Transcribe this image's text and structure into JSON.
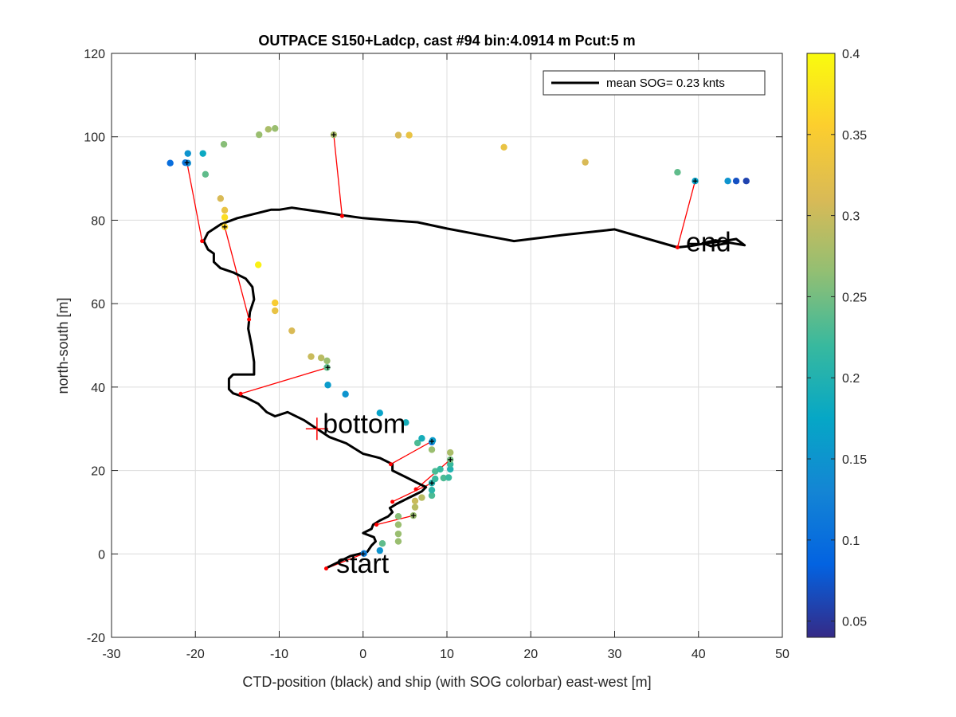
{
  "chart_data": {
    "type": "scatter",
    "title": "OUTPACE S150+Ladcp, cast #94 bin:4.0914 m  Pcut:5 m",
    "xlabel": "CTD-position (black) and ship (with SOG colorbar) east-west [m]",
    "ylabel": "north-south [m]",
    "xlim": [
      -30,
      50
    ],
    "ylim": [
      -20,
      120
    ],
    "xticks": [
      -30,
      -20,
      -10,
      0,
      10,
      20,
      30,
      40,
      50
    ],
    "yticks": [
      -20,
      0,
      20,
      40,
      60,
      80,
      100,
      120
    ],
    "grid": true,
    "legend": {
      "label": "mean SOG=  0.23 knts",
      "location": "top-right"
    },
    "colorbar": {
      "range": [
        0.04,
        0.4
      ],
      "ticks": [
        0.05,
        0.1,
        0.15,
        0.2,
        0.25,
        0.3,
        0.35,
        0.4
      ],
      "tick_labels": [
        "0.05",
        "0.1",
        "0.15",
        "0.2",
        "0.25",
        "0.3",
        "0.35",
        "0.4"
      ],
      "colormap": "parula"
    },
    "ctd_track": [
      [
        -4.5,
        -3.5
      ],
      [
        -3,
        -2
      ],
      [
        -1.5,
        -0.5
      ],
      [
        0.5,
        0.5
      ],
      [
        1,
        2
      ],
      [
        1.5,
        3
      ],
      [
        1.3,
        4
      ],
      [
        0,
        5
      ],
      [
        1,
        6
      ],
      [
        1.2,
        7
      ],
      [
        2,
        8
      ],
      [
        3,
        9
      ],
      [
        3.5,
        10
      ],
      [
        3.2,
        11
      ],
      [
        4,
        12
      ],
      [
        5,
        13
      ],
      [
        6,
        14
      ],
      [
        7,
        15
      ],
      [
        7.5,
        16
      ],
      [
        6.5,
        17
      ],
      [
        5,
        18.5
      ],
      [
        3.5,
        20
      ],
      [
        3.5,
        21.5
      ],
      [
        2,
        23
      ],
      [
        0,
        24
      ],
      [
        -2,
        26.5
      ],
      [
        -4,
        28
      ],
      [
        -5.5,
        30
      ],
      [
        -7,
        32
      ],
      [
        -9,
        34
      ],
      [
        -10.5,
        33
      ],
      [
        -11.5,
        34
      ],
      [
        -12.5,
        36
      ],
      [
        -14,
        37.5
      ],
      [
        -15.5,
        38.5
      ],
      [
        -16,
        39.5
      ],
      [
        -16,
        42
      ],
      [
        -15.5,
        43
      ],
      [
        -13,
        43
      ],
      [
        -13,
        46
      ],
      [
        -13.3,
        50
      ],
      [
        -13.7,
        54
      ],
      [
        -13.5,
        58
      ],
      [
        -13,
        61
      ],
      [
        -13.2,
        64
      ],
      [
        -14,
        66
      ],
      [
        -15.5,
        67.5
      ],
      [
        -17,
        68.5
      ],
      [
        -17.8,
        70
      ],
      [
        -17.8,
        72
      ],
      [
        -18.5,
        73
      ],
      [
        -19,
        75
      ],
      [
        -18.5,
        77
      ],
      [
        -17,
        79
      ],
      [
        -15,
        80.5
      ],
      [
        -13,
        81.5
      ],
      [
        -11,
        82.5
      ],
      [
        -10,
        82.5
      ],
      [
        -8.5,
        83
      ],
      [
        -5,
        82
      ],
      [
        -2.5,
        81.2
      ],
      [
        0,
        80.5
      ],
      [
        3,
        80
      ],
      [
        6.5,
        79.5
      ],
      [
        10,
        78
      ],
      [
        14,
        76.5
      ],
      [
        18,
        75
      ],
      [
        24,
        76.5
      ],
      [
        30,
        77.8
      ],
      [
        34,
        75.5
      ],
      [
        37.5,
        73.5
      ],
      [
        39,
        73.8
      ],
      [
        41,
        74.5
      ],
      [
        43,
        75
      ],
      [
        44.5,
        75.5
      ],
      [
        45.5,
        74
      ],
      [
        44,
        74.5
      ],
      [
        42,
        75.2
      ],
      [
        40.5,
        74.5
      ],
      [
        41.5,
        73.8
      ],
      [
        43.5,
        74.5
      ]
    ],
    "ship_points": [
      [
        0.1,
        0.1
      ],
      [
        2,
        0.8
      ],
      [
        2.3,
        2.5
      ],
      [
        4.2,
        3
      ],
      [
        4.2,
        4.8
      ],
      [
        4.2,
        7
      ],
      [
        4.2,
        9
      ],
      [
        6,
        9.2
      ],
      [
        6.2,
        11.2
      ],
      [
        6.2,
        12.7
      ],
      [
        7,
        13.5
      ],
      [
        8.2,
        14
      ],
      [
        8.2,
        15.3
      ],
      [
        8.2,
        17
      ],
      [
        8.6,
        18
      ],
      [
        9.6,
        18.2
      ],
      [
        10.2,
        18.3
      ],
      [
        8.6,
        19.8
      ],
      [
        9.2,
        20.3
      ],
      [
        10.4,
        20.3
      ],
      [
        10.4,
        21.5
      ],
      [
        10.4,
        22.6
      ],
      [
        10.4,
        24.3
      ],
      [
        8.2,
        25
      ],
      [
        6.5,
        26.6
      ],
      [
        8.2,
        26.8
      ],
      [
        7,
        27.7
      ],
      [
        8.3,
        27.2
      ],
      [
        5.1,
        31.5
      ],
      [
        2,
        33.8
      ],
      [
        -2.1,
        38.3
      ],
      [
        -4.2,
        40.5
      ],
      [
        -4.3,
        44.7
      ],
      [
        -4.3,
        46.3
      ],
      [
        -5,
        47
      ],
      [
        -6.2,
        47.3
      ],
      [
        -8.5,
        53.5
      ],
      [
        -10.5,
        58.3
      ],
      [
        -10.5,
        60.2
      ],
      [
        -12.5,
        69.3
      ],
      [
        -16.5,
        78.4
      ],
      [
        -16.5,
        80.7
      ],
      [
        -16.5,
        82.4
      ],
      [
        -17,
        85.2
      ],
      [
        -18.8,
        91
      ],
      [
        -20.9,
        93.7
      ],
      [
        -21.2,
        93.8
      ],
      [
        -23,
        93.7
      ],
      [
        -20.9,
        96
      ],
      [
        -19.1,
        96
      ],
      [
        -16.6,
        98.2
      ],
      [
        -12.4,
        100.5
      ],
      [
        -11.3,
        101.8
      ],
      [
        -10.5,
        102
      ],
      [
        -3.5,
        100.5
      ],
      [
        4.2,
        100.4
      ],
      [
        5.5,
        100.4
      ],
      [
        16.8,
        97.5
      ],
      [
        26.5,
        93.9
      ],
      [
        37.5,
        91.5
      ],
      [
        39.6,
        89.4
      ],
      [
        43.5,
        89.4
      ],
      [
        44.5,
        89.4
      ],
      [
        45.7,
        89.4
      ]
    ],
    "ship_sog": [
      0.12,
      0.15,
      0.24,
      0.27,
      0.27,
      0.27,
      0.26,
      0.27,
      0.29,
      0.3,
      0.29,
      0.23,
      0.21,
      0.2,
      0.22,
      0.23,
      0.22,
      0.23,
      0.22,
      0.2,
      0.22,
      0.25,
      0.28,
      0.27,
      0.23,
      0.12,
      0.19,
      0.16,
      0.19,
      0.17,
      0.15,
      0.16,
      0.24,
      0.27,
      0.29,
      0.3,
      0.31,
      0.33,
      0.35,
      0.39,
      0.36,
      0.37,
      0.33,
      0.31,
      0.24,
      0.14,
      0.11,
      0.1,
      0.15,
      0.18,
      0.26,
      0.27,
      0.28,
      0.27,
      0.28,
      0.31,
      0.33,
      0.33,
      0.31,
      0.24,
      0.17,
      0.15,
      0.07,
      0.06
    ],
    "ship_markers": [
      [
        0,
        0
      ],
      [
        6,
        9.2
      ],
      [
        8.2,
        17
      ],
      [
        10.4,
        22.6
      ],
      [
        8.2,
        27
      ],
      [
        -4.2,
        44.7
      ],
      [
        -16.5,
        78.4
      ],
      [
        -21,
        93.8
      ],
      [
        -3.5,
        100.5
      ],
      [
        39.6,
        89.4
      ]
    ],
    "ctd_markers": [
      [
        -4.4,
        -3.5
      ],
      [
        1.6,
        7
      ],
      [
        3.5,
        12.5
      ],
      [
        6.3,
        15.5
      ],
      [
        3.3,
        21.5
      ],
      [
        -14.6,
        38.4
      ],
      [
        -13.6,
        56.2
      ],
      [
        -19.2,
        75
      ],
      [
        -2.5,
        81
      ],
      [
        37.5,
        73.5
      ]
    ],
    "annotations": [
      {
        "text": "start",
        "x": -3.2,
        "y": -4.5
      },
      {
        "text": "bottom",
        "x": -4.8,
        "y": 29
      },
      {
        "text": "end",
        "x": 38.5,
        "y": 72.5
      }
    ],
    "bottom_marker": {
      "x": -5.5,
      "y": 30
    }
  }
}
